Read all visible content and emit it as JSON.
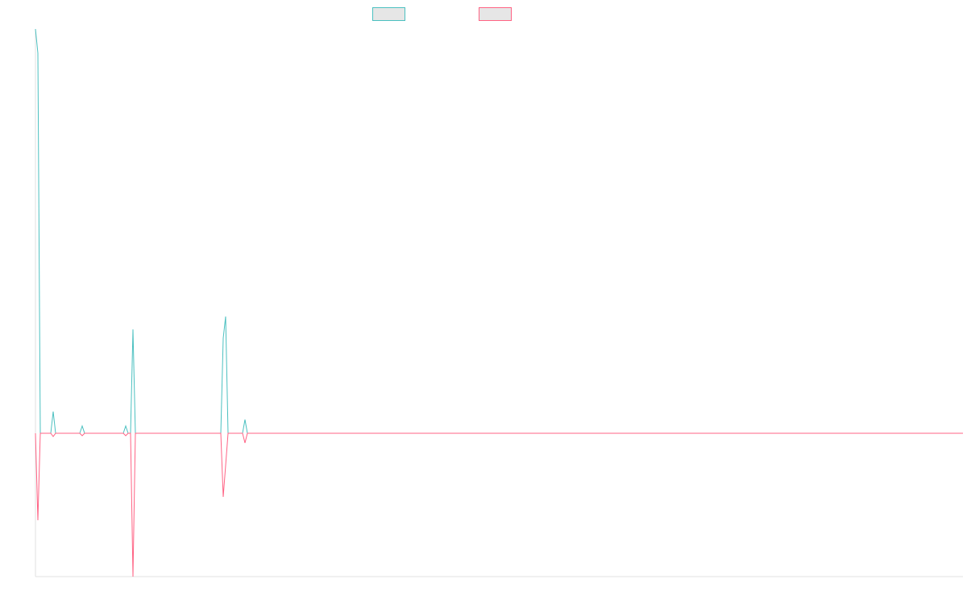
{
  "chart_data": {
    "type": "line",
    "x": [
      0,
      3,
      6,
      19,
      22,
      25,
      55,
      58,
      61,
      109,
      112,
      115,
      118,
      121,
      124,
      230,
      233,
      236,
      239,
      257,
      260,
      263,
      1151
    ],
    "xlim": [
      0,
      1151
    ],
    "ylim": [
      -178,
      502
    ],
    "series": [
      {
        "color": "#4bc0c0",
        "values": [
          502,
          472,
          0,
          0,
          27,
          0,
          0,
          9,
          0,
          0,
          9,
          0,
          0,
          129,
          0,
          0,
          118,
          145,
          0,
          0,
          17,
          0,
          0
        ]
      },
      {
        "color": "#ff6384",
        "values": [
          0,
          -108,
          0,
          0,
          -4,
          0,
          0,
          -3,
          0,
          0,
          -3,
          0,
          0,
          -178,
          0,
          0,
          -79,
          -40,
          0,
          0,
          -12,
          0,
          0
        ]
      }
    ]
  }
}
